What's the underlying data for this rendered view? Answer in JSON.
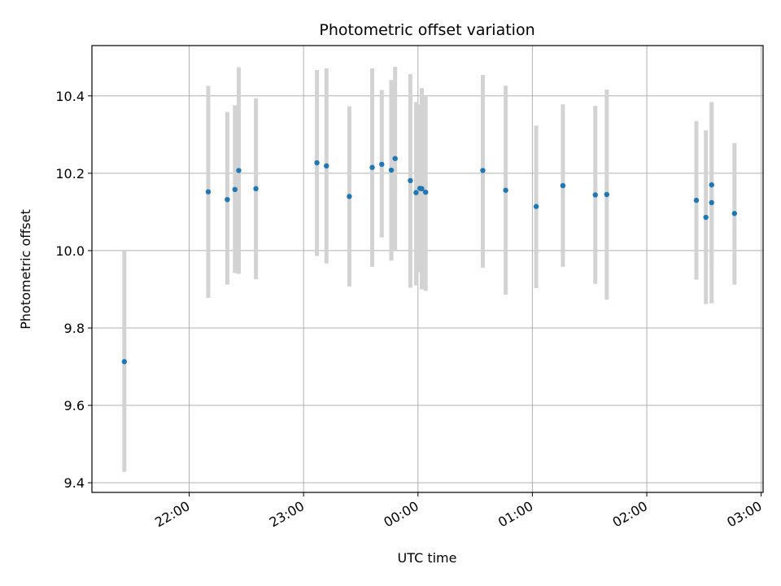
{
  "chart_data": {
    "type": "scatter",
    "title": "Photometric offset variation",
    "xlabel": "UTC time",
    "ylabel": "Photometric offset",
    "x_ticks": [
      "22:00",
      "23:00",
      "00:00",
      "01:00",
      "02:00",
      "03:00"
    ],
    "y_ticks": [
      "9.4",
      "9.6",
      "9.8",
      "10.0",
      "10.2",
      "10.4"
    ],
    "xlim": [
      "21:09",
      "03:01"
    ],
    "ylim": [
      9.375,
      10.53
    ],
    "grid": true,
    "marker_color": "#1f77b4",
    "errorbar_color": "#d3d3d3",
    "series": [
      {
        "points": [
          {
            "x": "21:26",
            "y": 9.713,
            "ylow": 9.428,
            "yhigh": 10.0
          },
          {
            "x": "22:10",
            "y": 10.152,
            "ylow": 9.878,
            "yhigh": 10.426
          },
          {
            "x": "22:20",
            "y": 10.132,
            "ylow": 9.912,
            "yhigh": 10.358
          },
          {
            "x": "22:24",
            "y": 10.158,
            "ylow": 9.942,
            "yhigh": 10.376
          },
          {
            "x": "22:26",
            "y": 10.207,
            "ylow": 9.94,
            "yhigh": 10.474
          },
          {
            "x": "22:35",
            "y": 10.16,
            "ylow": 9.926,
            "yhigh": 10.394
          },
          {
            "x": "23:07",
            "y": 10.227,
            "ylow": 9.986,
            "yhigh": 10.467
          },
          {
            "x": "23:12",
            "y": 10.219,
            "ylow": 9.967,
            "yhigh": 10.471
          },
          {
            "x": "23:24",
            "y": 10.14,
            "ylow": 9.907,
            "yhigh": 10.373
          },
          {
            "x": "23:36",
            "y": 10.215,
            "ylow": 9.958,
            "yhigh": 10.471
          },
          {
            "x": "23:41",
            "y": 10.223,
            "ylow": 10.034,
            "yhigh": 10.415
          },
          {
            "x": "23:46",
            "y": 10.208,
            "ylow": 9.974,
            "yhigh": 10.441
          },
          {
            "x": "23:48",
            "y": 10.238,
            "ylow": 10.0,
            "yhigh": 10.475
          },
          {
            "x": "23:56",
            "y": 10.181,
            "ylow": 9.904,
            "yhigh": 10.456
          },
          {
            "x": "23:59",
            "y": 10.15,
            "ylow": 9.91,
            "yhigh": 10.384
          },
          {
            "x": "00:01",
            "y": 10.161,
            "ylow": 9.944,
            "yhigh": 10.378
          },
          {
            "x": "00:02",
            "y": 10.16,
            "ylow": 9.9,
            "yhigh": 10.42
          },
          {
            "x": "00:04",
            "y": 10.151,
            "ylow": 9.896,
            "yhigh": 10.398
          },
          {
            "x": "00:34",
            "y": 10.207,
            "ylow": 9.956,
            "yhigh": 10.454
          },
          {
            "x": "00:46",
            "y": 10.156,
            "ylow": 9.886,
            "yhigh": 10.426
          },
          {
            "x": "01:02",
            "y": 10.114,
            "ylow": 9.903,
            "yhigh": 10.323
          },
          {
            "x": "01:16",
            "y": 10.168,
            "ylow": 9.958,
            "yhigh": 10.378
          },
          {
            "x": "01:33",
            "y": 10.144,
            "ylow": 9.914,
            "yhigh": 10.374
          },
          {
            "x": "01:39",
            "y": 10.145,
            "ylow": 9.873,
            "yhigh": 10.416
          },
          {
            "x": "02:26",
            "y": 10.13,
            "ylow": 9.925,
            "yhigh": 10.335
          },
          {
            "x": "02:31",
            "y": 10.086,
            "ylow": 9.862,
            "yhigh": 10.311
          },
          {
            "x": "02:34",
            "y": 10.17,
            "ylow": 9.956,
            "yhigh": 10.384
          },
          {
            "x": "02:34",
            "y": 10.124,
            "ylow": 9.864,
            "yhigh": 10.383
          },
          {
            "x": "02:46",
            "y": 10.096,
            "ylow": 9.912,
            "yhigh": 10.278
          }
        ]
      }
    ]
  }
}
